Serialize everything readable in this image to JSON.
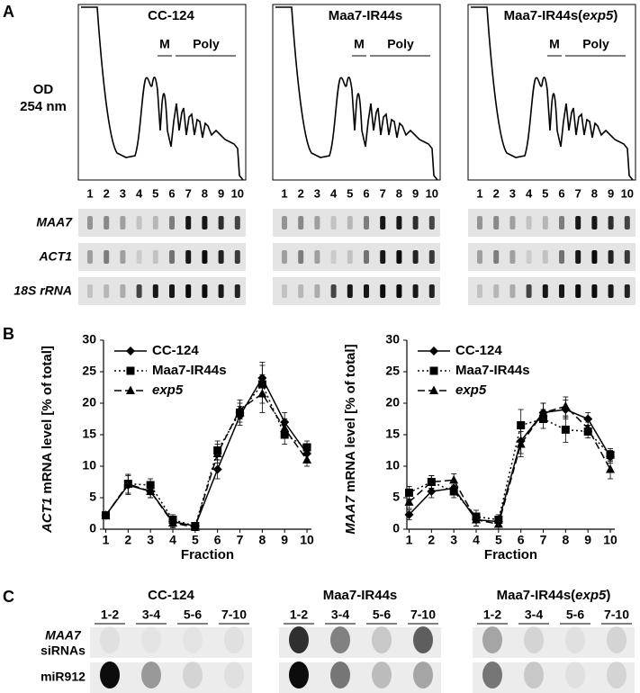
{
  "panel_a": {
    "letter": "A",
    "samples": [
      [
        "CC-124"
      ],
      [
        "Maa7-IR44s"
      ],
      [
        "Maa7-IR44s(",
        "exp5",
        ")"
      ]
    ],
    "od_label": [
      "OD",
      "254 nm"
    ],
    "monosome": "M",
    "polysome": "Poly",
    "fractions": [
      "1",
      "2",
      "3",
      "4",
      "5",
      "6",
      "7",
      "8",
      "9",
      "10"
    ],
    "blots": [
      "MAA7",
      "ACT1",
      "18S rRNA"
    ]
  },
  "panel_b_letter": "B",
  "chart_data": [
    {
      "type": "line",
      "ylabel_gene": "ACT1",
      "ylabel": "mRNA level [% of total]",
      "xlabel": "Fraction",
      "x": [
        1,
        2,
        3,
        4,
        5,
        6,
        7,
        8,
        9,
        10
      ],
      "xlim": [
        0.9,
        10.2
      ],
      "xticks": [
        1,
        2,
        3,
        4,
        5,
        6,
        7,
        8,
        9,
        10
      ],
      "ylim": [
        0,
        30
      ],
      "yticks": [
        0,
        5,
        10,
        15,
        20,
        25,
        30
      ],
      "legend": "upper left",
      "series": [
        {
          "name": "CC-124",
          "color": "#000000",
          "dash": "solid",
          "marker": "diamond",
          "italic": false,
          "values": [
            2.2,
            7,
            6,
            1.2,
            0.5,
            9.5,
            18,
            24,
            17,
            12
          ],
          "errors": [
            0.5,
            1.5,
            1,
            0.8,
            0.5,
            1.5,
            1.5,
            2.5,
            1.5,
            1
          ]
        },
        {
          "name": "Maa7-IR44s",
          "color": "#000000",
          "dash": "dotted",
          "marker": "square",
          "italic": false,
          "values": [
            2.2,
            7.2,
            7,
            1.5,
            0.5,
            12.5,
            18.5,
            23,
            15,
            13
          ],
          "errors": [
            0.5,
            1.5,
            1,
            0.8,
            0.5,
            1.5,
            1.5,
            3,
            1.5,
            1
          ]
        },
        {
          "name": "exp5",
          "color": "#000000",
          "dash": "dashed",
          "marker": "triangle",
          "italic": true,
          "values": [
            2.2,
            7.2,
            6,
            1,
            0.3,
            12,
            19,
            21.5,
            16,
            11
          ],
          "errors": [
            0.5,
            1.5,
            1,
            0.8,
            0.5,
            1.5,
            1.5,
            3,
            1.5,
            1
          ]
        }
      ]
    },
    {
      "type": "line",
      "ylabel_gene": "MAA7",
      "ylabel": "mRNA level [% of total]",
      "xlabel": "Fraction",
      "x": [
        1,
        2,
        3,
        4,
        5,
        6,
        7,
        8,
        9,
        10
      ],
      "xlim": [
        0.9,
        10.2
      ],
      "xticks": [
        1,
        2,
        3,
        4,
        5,
        6,
        7,
        8,
        9,
        10
      ],
      "ylim": [
        0,
        30
      ],
      "yticks": [
        0,
        5,
        10,
        15,
        20,
        25,
        30
      ],
      "legend": "upper left",
      "series": [
        {
          "name": "CC-124",
          "color": "#000000",
          "dash": "solid",
          "marker": "diamond",
          "italic": false,
          "values": [
            2.3,
            6,
            6.5,
            1.5,
            1.2,
            14,
            18.5,
            19,
            17.5,
            11.5
          ],
          "errors": [
            0.8,
            1,
            1,
            1,
            0.8,
            2,
            1.5,
            1.5,
            1,
            1
          ]
        },
        {
          "name": "Maa7-IR44s",
          "color": "#000000",
          "dash": "dotted",
          "marker": "square",
          "italic": false,
          "values": [
            5.8,
            7.5,
            6,
            2,
            1.5,
            16.5,
            17.5,
            15.8,
            15.5,
            11.8
          ],
          "errors": [
            1,
            1,
            1,
            1,
            0.8,
            2.5,
            1.5,
            2,
            1,
            1
          ]
        },
        {
          "name": "exp5",
          "color": "#000000",
          "dash": "dashed",
          "marker": "triangle",
          "italic": true,
          "values": [
            4.3,
            7.5,
            7.8,
            1.5,
            0.8,
            13.5,
            18.5,
            19.5,
            16,
            9.5
          ],
          "errors": [
            1,
            1,
            1,
            1,
            0.8,
            2,
            1.5,
            1.5,
            1,
            1.5
          ]
        }
      ]
    }
  ],
  "panel_c": {
    "letter": "C",
    "samples": [
      [
        "CC-124"
      ],
      [
        "Maa7-IR44s"
      ],
      [
        "Maa7-IR44s(",
        "exp5",
        ")"
      ]
    ],
    "lanes": [
      "1-2",
      "3-4",
      "5-6",
      "7-10"
    ],
    "rows": [
      [
        "MAA7",
        "siRNAs"
      ],
      [
        "miR912"
      ]
    ]
  }
}
